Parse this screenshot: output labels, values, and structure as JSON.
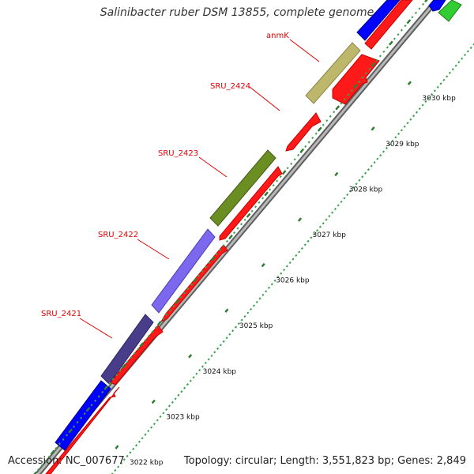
{
  "title": "Salinibacter ruber DSM 13855, complete genome",
  "accession": "Accession: NC_007677",
  "summary": "Topology: circular; Length: 3,551,823 bp; Genes: 2,849",
  "colors": {
    "backbone": "#8c8c8c",
    "cds_reverse": "#ff1a1a",
    "tick_major": "#2e7d32",
    "tick_minor": "#3aa04a",
    "label": "#e00000"
  },
  "ticks": [
    {
      "label": "3022 kbp"
    },
    {
      "label": "3023 kbp"
    },
    {
      "label": "3024 kbp"
    },
    {
      "label": "3025 kbp"
    },
    {
      "label": "3026 kbp"
    },
    {
      "label": "3027 kbp"
    },
    {
      "label": "3028 kbp"
    },
    {
      "label": "3029 kbp"
    },
    {
      "label": "3030 kbp"
    }
  ],
  "gene_labels": [
    {
      "name": "SRU_2421"
    },
    {
      "name": "SRU_2422"
    },
    {
      "name": "SRU_2423"
    },
    {
      "name": "SRU_2424"
    },
    {
      "name": "anmK"
    }
  ],
  "features": [
    {
      "kind": "forward-gene",
      "color": "#0000ff"
    },
    {
      "kind": "forward-gene",
      "color": "#483d8b",
      "label": "SRU_2421"
    },
    {
      "kind": "forward-gene",
      "color": "#7b68ee",
      "label": "SRU_2422"
    },
    {
      "kind": "forward-gene",
      "color": "#6b8e23",
      "label": "SRU_2423"
    },
    {
      "kind": "forward-gene",
      "color": "#bdb76b",
      "label": "anmK"
    },
    {
      "kind": "forward-gene",
      "color": "#0000ff"
    },
    {
      "kind": "forward-gene",
      "color": "#0000ff"
    },
    {
      "kind": "forward-gene",
      "color": "#32cd32"
    }
  ]
}
